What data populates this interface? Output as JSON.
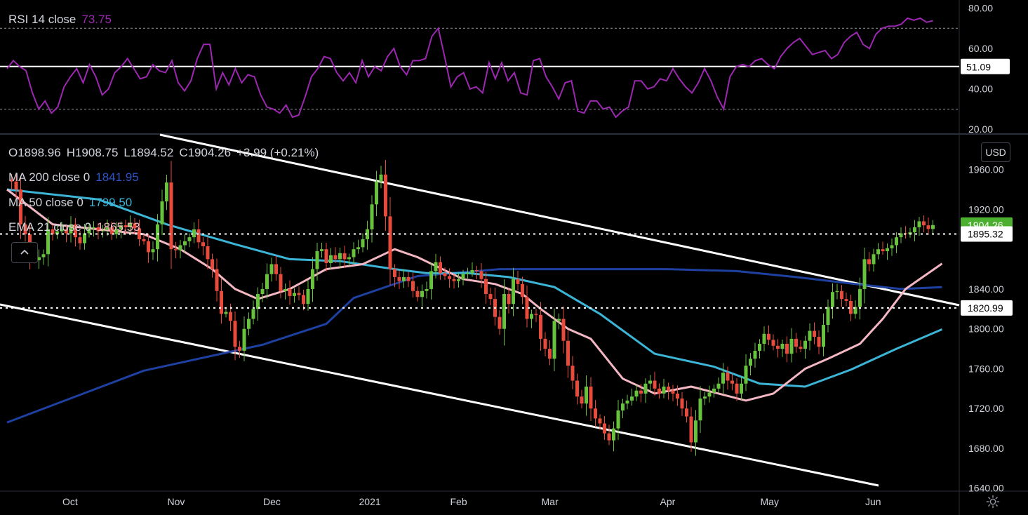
{
  "header": {
    "rsi_label": "RSI 14 close",
    "rsi_value": "73.75",
    "ohlc": {
      "o": "O1898.96",
      "h": "H1908.75",
      "l": "L1894.52",
      "c": "C1904.26",
      "chg": "+3.99 (+0.21%)"
    },
    "ma200_label": "MA 200 close 0",
    "ma200_value": "1841.95",
    "ma50_label": "MA 50 close 0",
    "ma50_value": "1799.50",
    "ema21_label": "EMA 21 close 0",
    "ema21_value": "1865.53",
    "currency": "USD",
    "collapse_icon": "chevron-up-icon",
    "settings_icon": "gear-icon"
  },
  "colors": {
    "background": "#000000",
    "up": "#66c33b",
    "down": "#e84a3c",
    "rsi": "#9c27b0",
    "ma200": "#1e40a0",
    "ma50": "#3cb4d6",
    "ema21": "#f3b7c3",
    "channel": "#ffffff",
    "last_price_badge": "#4caf2f"
  },
  "chart_data": [
    {
      "type": "line",
      "name": "rsi",
      "title": "RSI 14 close",
      "ylim": [
        18,
        84
      ],
      "y_ticks": [
        "80.00",
        "60.00",
        "40.00",
        "20.00"
      ],
      "levels": [
        {
          "value": 70,
          "style": "dotted"
        },
        {
          "value": 30,
          "style": "dotted"
        },
        {
          "value": 51.09,
          "style": "solid",
          "label": "51.09"
        }
      ],
      "values": [
        50,
        54,
        51,
        49,
        38,
        30,
        34,
        28,
        31,
        41,
        46,
        50,
        43,
        52,
        46,
        37,
        40,
        48,
        51,
        55,
        50,
        45,
        46,
        52,
        49,
        48,
        54,
        43,
        39,
        44,
        55,
        62,
        62,
        40,
        48,
        42,
        50,
        43,
        47,
        46,
        37,
        31,
        30,
        28,
        32,
        26,
        27,
        36,
        46,
        50,
        56,
        55,
        48,
        44,
        48,
        43,
        54,
        46,
        51,
        49,
        56,
        60,
        51,
        47,
        54,
        54,
        55,
        66,
        70,
        56,
        41,
        46,
        48,
        40,
        41,
        38,
        53,
        45,
        53,
        44,
        48,
        38,
        37,
        54,
        55,
        46,
        41,
        35,
        43,
        44,
        29,
        28,
        34,
        34,
        30,
        31,
        26,
        29,
        31,
        44,
        44,
        40,
        41,
        45,
        44,
        50,
        45,
        41,
        38,
        43,
        50,
        44,
        36,
        30,
        46,
        51,
        52,
        51,
        54,
        55,
        52,
        50,
        56,
        60,
        63,
        65,
        61,
        57,
        58,
        59,
        55,
        57,
        63,
        66,
        68,
        62,
        60,
        67,
        70,
        71,
        71,
        72,
        75,
        74,
        75,
        73,
        73.75
      ]
    },
    {
      "type": "candlestick",
      "name": "XAUUSD daily",
      "ylim": [
        1637,
        1995
      ],
      "y_ticks": [
        "1960.00",
        "1920.00",
        "1840.00",
        "1800.00",
        "1760.00",
        "1720.00",
        "1680.00",
        "1640.00"
      ],
      "x_ticks": [
        "Oct",
        "Nov",
        "Dec",
        "2021",
        "Feb",
        "Mar",
        "Apr",
        "May",
        "Jun"
      ],
      "price_labels": [
        {
          "value": 1904.26,
          "label": "1904.26",
          "color": "#4caf2f"
        },
        {
          "value": 1895.32,
          "label": "1895.32",
          "line": "dotted"
        },
        {
          "value": 1820.99,
          "label": "1820.99",
          "line": "dotted"
        }
      ],
      "closes": [
        1950,
        1948,
        1940,
        1905,
        1895,
        1870,
        1869,
        1872,
        1875,
        1900,
        1895,
        1898,
        1900,
        1896,
        1905,
        1892,
        1886,
        1896,
        1901,
        1902,
        1898,
        1899,
        1902,
        1895,
        1900,
        1904,
        1902,
        1906,
        1901,
        1890,
        1888,
        1877,
        1880,
        1905,
        1928,
        1947,
        1880,
        1879,
        1884,
        1888,
        1892,
        1900,
        1887,
        1883,
        1870,
        1860,
        1838,
        1815,
        1817,
        1808,
        1782,
        1778,
        1800,
        1810,
        1820,
        1835,
        1840,
        1855,
        1865,
        1855,
        1838,
        1840,
        1833,
        1836,
        1834,
        1825,
        1840,
        1860,
        1878,
        1880,
        1866,
        1874,
        1870,
        1876,
        1870,
        1872,
        1880,
        1882,
        1890,
        1900,
        1925,
        1948,
        1955,
        1913,
        1860,
        1852,
        1848,
        1852,
        1848,
        1838,
        1832,
        1838,
        1840,
        1858,
        1867,
        1856,
        1853,
        1850,
        1848,
        1850,
        1855,
        1856,
        1859,
        1858,
        1850,
        1835,
        1830,
        1812,
        1800,
        1835,
        1825,
        1850,
        1845,
        1832,
        1810,
        1815,
        1814,
        1790,
        1780,
        1770,
        1808,
        1810,
        1788,
        1763,
        1748,
        1732,
        1725,
        1742,
        1720,
        1710,
        1705,
        1695,
        1688,
        1700,
        1718,
        1725,
        1728,
        1732,
        1738,
        1735,
        1745,
        1748,
        1740,
        1735,
        1742,
        1738,
        1735,
        1730,
        1720,
        1712,
        1686,
        1708,
        1730,
        1732,
        1736,
        1740,
        1745,
        1756,
        1748,
        1745,
        1735,
        1745,
        1763,
        1770,
        1778,
        1785,
        1795,
        1789,
        1783,
        1780,
        1785,
        1775,
        1790,
        1782,
        1780,
        1788,
        1798,
        1792,
        1782,
        1804,
        1822,
        1837,
        1838,
        1830,
        1828,
        1815,
        1822,
        1840,
        1870,
        1865,
        1875,
        1880,
        1878,
        1881,
        1884,
        1892,
        1896,
        1895,
        1897,
        1902,
        1908,
        1904,
        1900.27,
        1904.26
      ]
    },
    {
      "type": "line",
      "name": "MA 200 close 0",
      "x_index": [
        0,
        30,
        56,
        70,
        76,
        90,
        108,
        130,
        145,
        160,
        173,
        186,
        196,
        205
      ],
      "values": [
        1706,
        1758,
        1784,
        1805,
        1831,
        1853,
        1860,
        1860,
        1860,
        1858,
        1852,
        1845,
        1840,
        1841.95
      ]
    },
    {
      "type": "line",
      "name": "MA 50 close 0",
      "x_index": [
        0,
        20,
        35,
        50,
        62,
        73,
        85,
        92,
        101,
        110,
        120,
        130,
        142,
        155,
        165,
        175,
        185,
        195,
        205
      ],
      "values": [
        1940,
        1930,
        1905,
        1885,
        1870,
        1868,
        1860,
        1856,
        1856,
        1852,
        1842,
        1815,
        1775,
        1762,
        1745,
        1742,
        1759,
        1780,
        1799.5
      ]
    },
    {
      "type": "line",
      "name": "EMA 21 close 0",
      "x_index": [
        0,
        10,
        20,
        30,
        38,
        45,
        50,
        55,
        62,
        70,
        78,
        85,
        90,
        100,
        107,
        113,
        117,
        123,
        128,
        135,
        142,
        150,
        156,
        162,
        168,
        175,
        180,
        187,
        192,
        197,
        205
      ],
      "values": [
        1940,
        1905,
        1900,
        1895,
        1880,
        1860,
        1840,
        1830,
        1840,
        1860,
        1865,
        1880,
        1872,
        1850,
        1845,
        1835,
        1820,
        1800,
        1790,
        1750,
        1735,
        1742,
        1735,
        1728,
        1735,
        1760,
        1770,
        1785,
        1810,
        1840,
        1865.53
      ]
    }
  ]
}
